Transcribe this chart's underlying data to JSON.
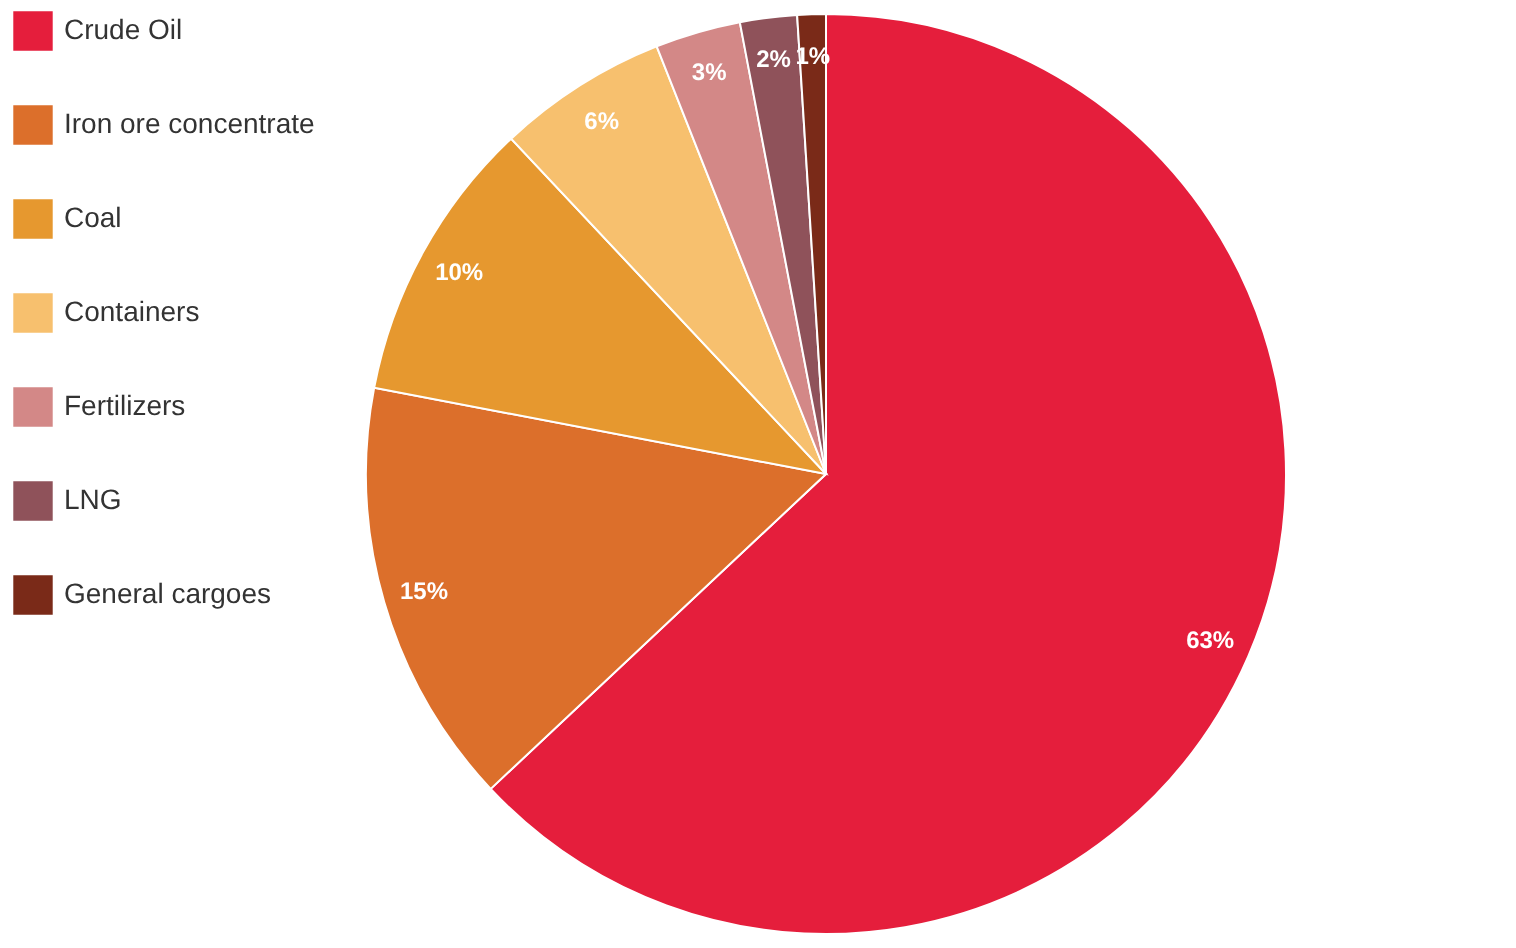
{
  "chart_data": {
    "type": "pie",
    "categories": [
      "Crude Oil",
      "Iron ore concentrate",
      "Coal",
      "Containers",
      "Fertilizers",
      "LNG",
      "General cargoes"
    ],
    "values": [
      63,
      15,
      10,
      6,
      3,
      2,
      1
    ],
    "colors": [
      "#e51e3c",
      "#dc6f2b",
      "#e6982f",
      "#f7c06e",
      "#d38887",
      "#8f525a",
      "#7a2a18"
    ],
    "value_labels": [
      "63%",
      "15%",
      "10%",
      "6%",
      "3%",
      "2%",
      "1%"
    ],
    "legend": "left"
  }
}
